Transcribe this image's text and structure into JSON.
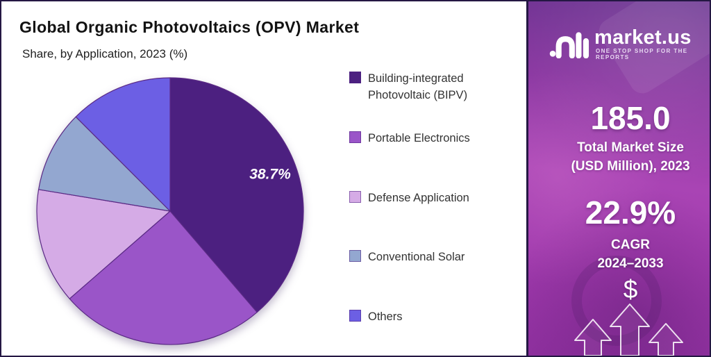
{
  "chart_data": {
    "type": "pie",
    "title": "Global Organic Photovoltaics (OPV) Market",
    "subtitle": "Share, by Application, 2023 (%)",
    "unit": "%",
    "legend_position": "right",
    "direction": "clockwise",
    "start_angle_deg": 0,
    "slices": [
      {
        "label": "Building-integrated Photovoltaic (BIPV)",
        "value": 38.7,
        "color": "#4C2080",
        "data_label": "38.7%"
      },
      {
        "label": "Portable Electronics",
        "value": 24.9,
        "color": "#9A55C8",
        "data_label": ""
      },
      {
        "label": "Defense Application",
        "value": 14.0,
        "color": "#D5ABE6",
        "data_label": ""
      },
      {
        "label": "Conventional Solar",
        "value": 9.9,
        "color": "#93A7D0",
        "data_label": ""
      },
      {
        "label": "Others",
        "value": 12.5,
        "color": "#6C5FE4",
        "data_label": ""
      }
    ]
  },
  "sidebar": {
    "brand": {
      "name": "market.us",
      "tagline": "ONE STOP SHOP FOR THE REPORTS"
    },
    "stats": [
      {
        "value": "185.0",
        "caption": [
          "Total Market Size",
          "(USD Million), 2023"
        ]
      },
      {
        "value": "22.9%",
        "caption": [
          "CAGR",
          "2024–2033"
        ]
      }
    ],
    "dollar_symbol": "$"
  },
  "colors": {
    "outer_border": "#241743",
    "pie_stroke": "#5B2A85",
    "data_label_text": "#FFFFFF",
    "panel_gradient": [
      "#6A3390",
      "#A944B4",
      "#8F309F"
    ]
  }
}
